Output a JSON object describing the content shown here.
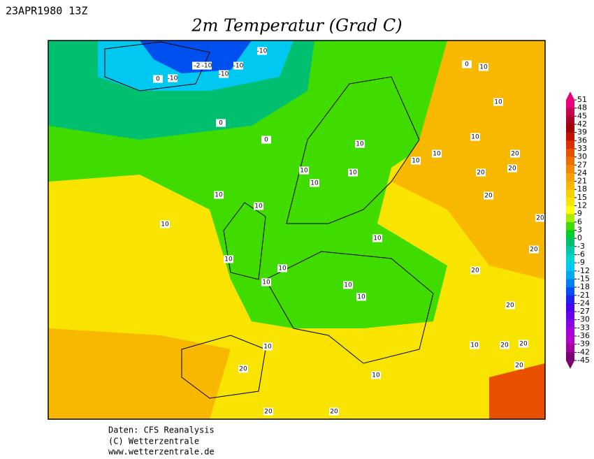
{
  "header": {
    "date": "23APR1980 13Z",
    "title": "2m Temperatur (Grad C)"
  },
  "colorbar": {
    "ticks": [
      51,
      48,
      45,
      42,
      39,
      36,
      33,
      30,
      27,
      24,
      21,
      18,
      15,
      12,
      9,
      6,
      3,
      0,
      -3,
      -6,
      -9,
      -12,
      -15,
      -18,
      -21,
      -24,
      -27,
      -30,
      -33,
      -36,
      -39,
      -42,
      -45
    ],
    "colors": [
      "#e8007a",
      "#c80050",
      "#a80028",
      "#a00000",
      "#c01000",
      "#d83000",
      "#e85000",
      "#f06c00",
      "#f48800",
      "#f8a000",
      "#f8b800",
      "#f8d000",
      "#f8e400",
      "#ffff00",
      "#a8ec00",
      "#40dc00",
      "#00cc30",
      "#00c070",
      "#00c8a8",
      "#00d4d0",
      "#00c8f0",
      "#00a8f0",
      "#0080f0",
      "#0050f0",
      "#2020f0",
      "#4800f0",
      "#6800e8",
      "#8800e0",
      "#a400d8",
      "#b400c8",
      "#a0009c",
      "#780070"
    ]
  },
  "contour_labels": [
    "-10",
    "-2",
    "-10",
    "-10",
    "-10",
    "0",
    "-10",
    "0",
    "0",
    "0",
    "10",
    "10",
    "10",
    "10",
    "10",
    "10",
    "10",
    "10",
    "10",
    "10",
    "10",
    "10",
    "10",
    "10",
    "10",
    "10",
    "10",
    "10",
    "10",
    "20",
    "20",
    "20",
    "20",
    "20",
    "20",
    "20",
    "20",
    "20",
    "20",
    "10",
    "20",
    "20",
    "20",
    "20",
    "10"
  ],
  "footer": {
    "line1": "Daten: CFS Reanalysis",
    "line2": "(C) Wetterzentrale",
    "line3": "www.wetterzentrale.de"
  }
}
